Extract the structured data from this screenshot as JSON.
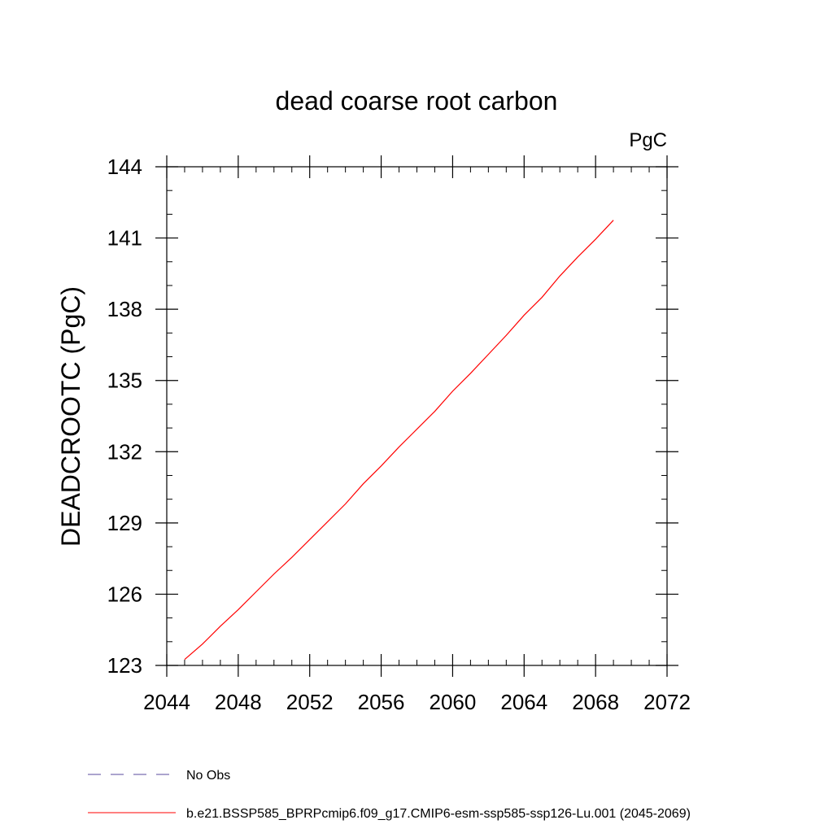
{
  "chart_data": {
    "type": "line",
    "title": "dead coarse root carbon",
    "units": "PgC",
    "xlabel": "",
    "ylabel": "DEADCROOTC  (PgC)",
    "xlim": [
      2044,
      2072
    ],
    "ylim": [
      123,
      144
    ],
    "xticks": [
      2044,
      2048,
      2052,
      2056,
      2060,
      2064,
      2068,
      2072
    ],
    "yticks": [
      123,
      126,
      129,
      132,
      135,
      138,
      141,
      144
    ],
    "x_minor_step": 1,
    "y_minor_step": 1,
    "grid": false,
    "legend_position": "bottom-left",
    "series": [
      {
        "name": "No Obs",
        "color": "#5a4a9e",
        "dash": "dashed",
        "x": [],
        "y": []
      },
      {
        "name": "b.e21.BSSP585_BPRPcmip6.f09_g17.CMIP6-esm-ssp585-ssp126-Lu.001 (2045-2069)",
        "color": "#ff0000",
        "dash": "solid",
        "x": [
          2045,
          2046,
          2047,
          2048,
          2049,
          2050,
          2051,
          2052,
          2053,
          2054,
          2055,
          2056,
          2057,
          2058,
          2059,
          2060,
          2061,
          2062,
          2063,
          2064,
          2065,
          2066,
          2067,
          2068,
          2069
        ],
        "y": [
          123.25,
          123.9,
          124.65,
          125.35,
          126.1,
          126.85,
          127.55,
          128.3,
          129.05,
          129.8,
          130.65,
          131.4,
          132.2,
          132.95,
          133.7,
          134.55,
          135.3,
          136.1,
          136.9,
          137.75,
          138.5,
          139.4,
          140.2,
          140.95,
          141.75
        ]
      }
    ]
  }
}
